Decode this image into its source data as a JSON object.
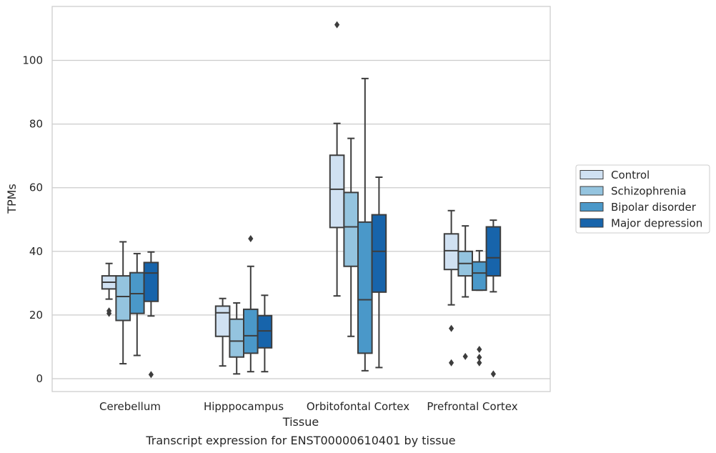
{
  "chart_data": {
    "type": "box",
    "title": "",
    "caption": "Transcript expression for ENST00000610401 by tissue",
    "xlabel": "Tissue",
    "ylabel": "TPMs",
    "ylim": [
      -4,
      117
    ],
    "yticks": [
      0,
      20,
      40,
      60,
      80,
      100
    ],
    "grid": "horizontal",
    "legend_position": "right",
    "categories": [
      "Cerebellum",
      "Hipppocampus",
      "Orbitofontal Cortex",
      "Prefrontal Cortex"
    ],
    "series": [
      {
        "name": "Control",
        "color": "#d0e1f2",
        "boxes": [
          {
            "whislo": 25,
            "q1": 28.2,
            "med": 30.3,
            "q3": 32.3,
            "whishi": 36.2,
            "fliers": [
              20.5,
              21.3
            ]
          },
          {
            "whislo": 4,
            "q1": 13.3,
            "med": 20.7,
            "q3": 22.8,
            "whishi": 25.2,
            "fliers": []
          },
          {
            "whislo": 26,
            "q1": 47.5,
            "med": 59.5,
            "q3": 70.2,
            "whishi": 80.2,
            "fliers": [
              111.2
            ]
          },
          {
            "whislo": 23.2,
            "q1": 34.3,
            "med": 40.2,
            "q3": 45.5,
            "whishi": 52.8,
            "fliers": [
              5,
              15.8
            ]
          }
        ]
      },
      {
        "name": "Schizophrenia",
        "color": "#94c4df",
        "boxes": [
          {
            "whislo": 4.7,
            "q1": 18.3,
            "med": 25.8,
            "q3": 32.3,
            "whishi": 43,
            "fliers": []
          },
          {
            "whislo": 1.5,
            "q1": 6.8,
            "med": 11.8,
            "q3": 18.7,
            "whishi": 23.8,
            "fliers": []
          },
          {
            "whislo": 13.3,
            "q1": 35.3,
            "med": 47.7,
            "q3": 58.5,
            "whishi": 75.5,
            "fliers": []
          },
          {
            "whislo": 25.7,
            "q1": 32.3,
            "med": 36.2,
            "q3": 40,
            "whishi": 48,
            "fliers": [
              7
            ]
          }
        ]
      },
      {
        "name": "Bipolar disorder",
        "color": "#4a98c9",
        "boxes": [
          {
            "whislo": 7.3,
            "q1": 20.5,
            "med": 26.7,
            "q3": 33.3,
            "whishi": 39.3,
            "fliers": []
          },
          {
            "whislo": 2.2,
            "q1": 8,
            "med": 13.5,
            "q3": 21.8,
            "whishi": 35.3,
            "fliers": [
              44
            ]
          },
          {
            "whislo": 2.5,
            "q1": 8,
            "med": 24.8,
            "q3": 49.2,
            "whishi": 94.3,
            "fliers": []
          },
          {
            "whislo": 27.8,
            "q1": 27.8,
            "med": 33.2,
            "q3": 36.7,
            "whishi": 40.2,
            "fliers": [
              5,
              6.7,
              9.2
            ]
          }
        ]
      },
      {
        "name": "Major depression",
        "color": "#1764ab",
        "boxes": [
          {
            "whislo": 19.7,
            "q1": 24.3,
            "med": 33.2,
            "q3": 36.5,
            "whishi": 39.8,
            "fliers": [
              1.3
            ]
          },
          {
            "whislo": 2.2,
            "q1": 9.7,
            "med": 15,
            "q3": 19.8,
            "whishi": 26.2,
            "fliers": []
          },
          {
            "whislo": 3.5,
            "q1": 27.2,
            "med": 40,
            "q3": 51.5,
            "whishi": 63.3,
            "fliers": []
          },
          {
            "whislo": 27.3,
            "q1": 32.3,
            "med": 38,
            "q3": 47.7,
            "whishi": 49.8,
            "fliers": [
              1.5
            ]
          }
        ]
      }
    ]
  }
}
